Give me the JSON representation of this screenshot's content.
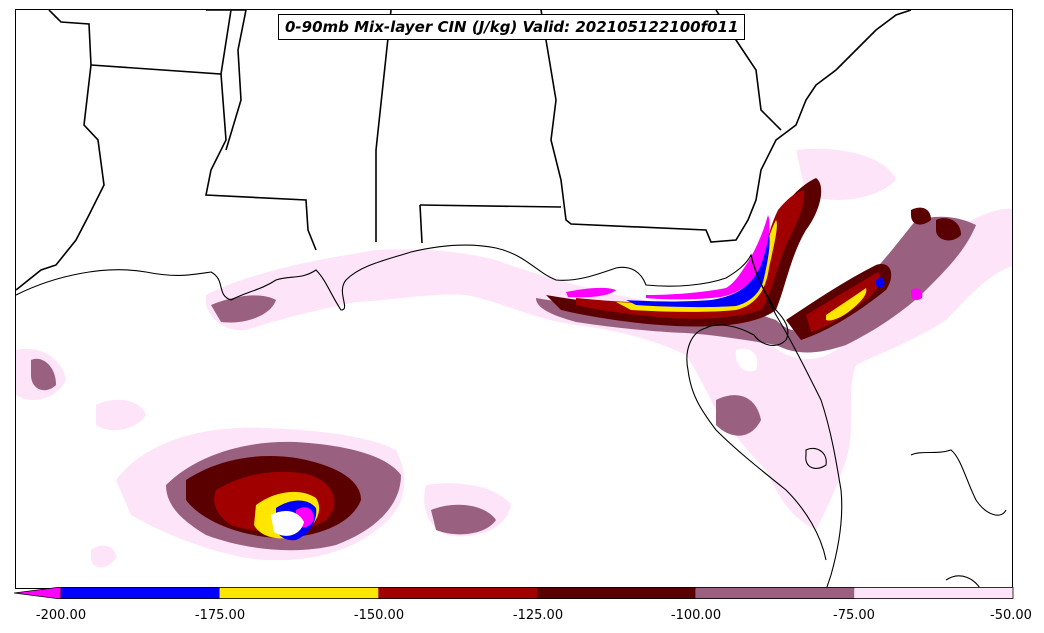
{
  "title": "0-90mb Mix-layer CIN (J/kg) Valid: 202105122100f011",
  "colorbar": {
    "ticks": [
      "-200.00",
      "-175.00",
      "-150.00",
      "-125.00",
      "-100.00",
      "-75.00",
      "-50.00"
    ],
    "bins": [
      {
        "range": "< -200",
        "color": "#ff00ff"
      },
      {
        "range": "-200 to -175",
        "color": "#0000ff"
      },
      {
        "range": "-175 to -150",
        "color": "#ffe600"
      },
      {
        "range": "-150 to -125",
        "color": "#a00000"
      },
      {
        "range": "-125 to -100",
        "color": "#5a0000"
      },
      {
        "range": "-100 to -75",
        "color": "#996080"
      },
      {
        "range": "-75 to -50",
        "color": "#fde4f8"
      }
    ]
  },
  "colors": {
    "border": "#000000",
    "background": "#ffffff"
  }
}
